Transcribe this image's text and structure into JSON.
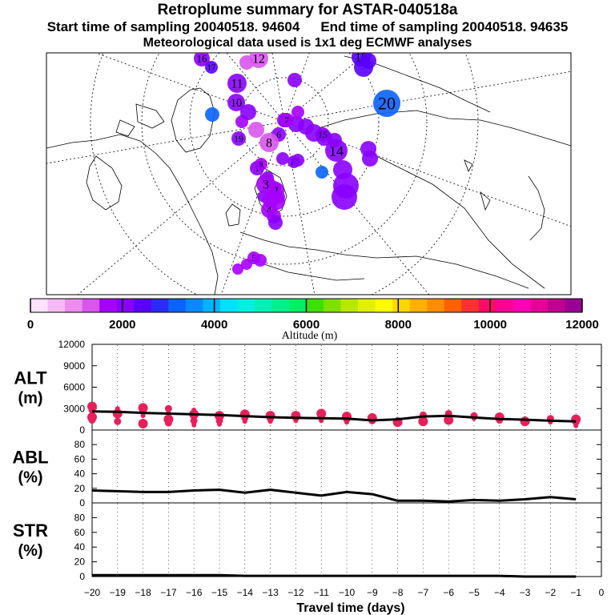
{
  "header": {
    "title": "Retroplume summary for ASTAR-040518a",
    "start_label": "Start time of sampling 20040518. 94604",
    "end_label": "End time of sampling 20040518. 94635",
    "met_label": "Meteorological data used is 1x1 deg ECMWF analyses"
  },
  "colors": {
    "altitude_scale": [
      "#fde2fd",
      "#f6b9f6",
      "#ec8cee",
      "#d955ee",
      "#a600ff",
      "#8a00ff",
      "#5a00ff",
      "#2b2bff",
      "#0a62ff",
      "#0a88ff",
      "#00b4ff",
      "#00e0ff",
      "#00f0e0",
      "#00f0b8",
      "#00f08c",
      "#00f060",
      "#3ce000",
      "#7ee000",
      "#b8e800",
      "#e0f000",
      "#ffff00",
      "#ffd700",
      "#ffb000",
      "#ff8c00",
      "#ff6000",
      "#ff3030",
      "#ff0a64",
      "#ff0096",
      "#ff00b4",
      "#e6009a",
      "#c00090",
      "#9a0096"
    ],
    "alt_points": "#e8205a",
    "line": "#000000"
  },
  "chart_data": [
    {
      "type": "map",
      "title": "Retroplume summary for ASTAR-040518a",
      "projection": "north polar stereographic",
      "plume_clusters": [
        {
          "day": 1,
          "altitude_m": 2000
        },
        {
          "day": 2,
          "altitude_m": 1700
        },
        {
          "day": 3,
          "altitude_m": 1600
        },
        {
          "day": 4,
          "altitude_m": 1700
        },
        {
          "day": 5,
          "altitude_m": 1800
        },
        {
          "day": 6,
          "altitude_m": 2000
        },
        {
          "day": 7,
          "altitude_m": 1800
        },
        {
          "day": 8,
          "altitude_m": 1200
        },
        {
          "day": 9,
          "altitude_m": 1500
        },
        {
          "day": 10,
          "altitude_m": 1900
        },
        {
          "day": 11,
          "altitude_m": 1900
        },
        {
          "day": 12,
          "altitude_m": 1200
        },
        {
          "day": 13,
          "altitude_m": 1900
        },
        {
          "day": 14,
          "altitude_m": 2100
        },
        {
          "day": 15,
          "altitude_m": 2100
        },
        {
          "day": 16,
          "altitude_m": 2200
        },
        {
          "day": 17,
          "altitude_m": 2400
        },
        {
          "day": 18,
          "altitude_m": 2300
        },
        {
          "day": 19,
          "altitude_m": 2200
        },
        {
          "day": 20,
          "altitude_m": 3200
        }
      ],
      "colorbar": {
        "label": "Altitude (m)",
        "range": [
          0,
          12000
        ],
        "ticks": [
          "0",
          "2000",
          "4000",
          "6000",
          "8000",
          "10000",
          "12000"
        ]
      }
    },
    {
      "type": "line",
      "panel": "ALT",
      "ylabel": "ALT\n(m)",
      "ylabel_lines": [
        "ALT",
        "(m)"
      ],
      "ylim": [
        0,
        12000
      ],
      "yticks": [
        "0",
        "3000",
        "6000",
        "9000",
        "12000"
      ],
      "x": [
        -20,
        -19,
        -18,
        -17,
        -16,
        -15,
        -14,
        -13,
        -12,
        -11,
        -10,
        -9,
        -8,
        -7,
        -6,
        -5,
        -4,
        -3,
        -2,
        -1
      ],
      "mean_line": [
        2600,
        2550,
        2400,
        2300,
        2200,
        2100,
        1950,
        1800,
        1700,
        1650,
        1600,
        1350,
        1500,
        1900,
        2000,
        1750,
        1550,
        1450,
        1300,
        1200
      ],
      "scatter": [
        [
          -20,
          3300
        ],
        [
          -20,
          2800
        ],
        [
          -20,
          2300
        ],
        [
          -20,
          1800
        ],
        [
          -20,
          1400
        ],
        [
          -19,
          2800
        ],
        [
          -19,
          2300
        ],
        [
          -19,
          1200
        ],
        [
          -19,
          3000
        ],
        [
          -18,
          3100
        ],
        [
          -18,
          2600
        ],
        [
          -18,
          2000
        ],
        [
          -18,
          900
        ],
        [
          -17,
          3000
        ],
        [
          -17,
          2400
        ],
        [
          -17,
          1500
        ],
        [
          -17,
          1000
        ],
        [
          -16,
          2800
        ],
        [
          -16,
          2200
        ],
        [
          -16,
          1300
        ],
        [
          -16,
          700
        ],
        [
          -15,
          2000
        ],
        [
          -15,
          1300
        ],
        [
          -15,
          800
        ],
        [
          -14,
          2200
        ],
        [
          -14,
          1700
        ],
        [
          -14,
          1200
        ],
        [
          -13,
          2000
        ],
        [
          -13,
          1600
        ],
        [
          -13,
          1200
        ],
        [
          -12,
          2000
        ],
        [
          -12,
          1700
        ],
        [
          -12,
          1300
        ],
        [
          -11,
          2300
        ],
        [
          -11,
          1800
        ],
        [
          -11,
          1300
        ],
        [
          -10,
          1900
        ],
        [
          -10,
          1500
        ],
        [
          -10,
          1100
        ],
        [
          -9,
          1700
        ],
        [
          -9,
          1300
        ],
        [
          -8,
          1500
        ],
        [
          -8,
          1100
        ],
        [
          -7,
          2100
        ],
        [
          -7,
          1600
        ],
        [
          -7,
          1200
        ],
        [
          -6,
          2300
        ],
        [
          -6,
          1800
        ],
        [
          -6,
          1400
        ],
        [
          -5,
          2000
        ],
        [
          -5,
          1600
        ],
        [
          -4,
          1800
        ],
        [
          -4,
          1400
        ],
        [
          -3,
          1600
        ],
        [
          -3,
          1200
        ],
        [
          -2,
          1600
        ],
        [
          -2,
          1100
        ],
        [
          -1,
          1500
        ],
        [
          -1,
          1100
        ],
        [
          -1,
          600
        ]
      ]
    },
    {
      "type": "line",
      "panel": "ABL",
      "ylabel": "ABL\n(%)",
      "ylabel_lines": [
        "ABL",
        "(%)"
      ],
      "ylim": [
        0,
        100
      ],
      "yticks": [
        "0",
        "20",
        "40",
        "60",
        "80"
      ],
      "x": [
        -20,
        -19,
        -18,
        -17,
        -16,
        -15,
        -14,
        -13,
        -12,
        -11,
        -10,
        -9,
        -8,
        -7,
        -6,
        -5,
        -4,
        -3,
        -2,
        -1
      ],
      "values": [
        17,
        16,
        15,
        15,
        17,
        18,
        14,
        18,
        14,
        10,
        15,
        12,
        3,
        3,
        2,
        4,
        3,
        5,
        8,
        5
      ]
    },
    {
      "type": "line",
      "panel": "STR",
      "ylabel": "STR\n(%)",
      "ylabel_lines": [
        "STR",
        "(%)"
      ],
      "ylim": [
        0,
        100
      ],
      "yticks": [
        "0",
        "20",
        "40",
        "60",
        "80"
      ],
      "x": [
        -20,
        -19,
        -18,
        -17,
        -16,
        -15,
        -14,
        -13,
        -12,
        -11,
        -10,
        -9,
        -8,
        -7,
        -6,
        -5,
        -4,
        -3,
        -2,
        -1
      ],
      "values": [
        2,
        2,
        2,
        2,
        2,
        2,
        1,
        1,
        1,
        1,
        1,
        1,
        1,
        1,
        1,
        1,
        1,
        0,
        0,
        0
      ]
    }
  ],
  "xaxis": {
    "label": "Travel time (days)",
    "ticks": [
      "−20",
      "−19",
      "−18",
      "−17",
      "−16",
      "−15",
      "−14",
      "−13",
      "−12",
      "−11",
      "−10",
      "−9",
      "−8",
      "−7",
      "−6",
      "−5",
      "−4",
      "−3",
      "−2",
      "−1",
      "0"
    ]
  }
}
